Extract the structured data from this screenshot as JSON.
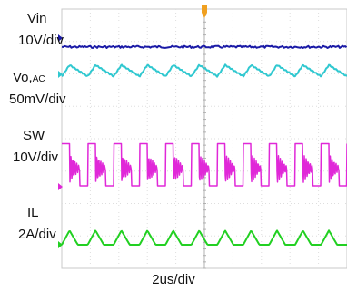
{
  "channels": [
    {
      "name": "Vin",
      "scale": "10V/div",
      "color": "#1a1aa6"
    },
    {
      "name_main": "Vo,",
      "name_sub": "AC",
      "scale": "50mV/div",
      "color": "#30c8d0"
    },
    {
      "name": "SW",
      "scale": "10V/div",
      "color": "#e028d8"
    },
    {
      "name": "IL",
      "scale": "2A/div",
      "color": "#22d022"
    }
  ],
  "timebase": "2us/div",
  "trigger_color": "#f0a020",
  "chart_data": {
    "type": "line",
    "x_divisions": 10,
    "y_divisions": 8,
    "grid": true,
    "series": [
      {
        "name": "Vin",
        "shape": "flat-dc",
        "level_div": 3.3
      },
      {
        "name": "Vo,AC",
        "shape": "sawtooth-ripple",
        "cycles_on_screen": 11,
        "peak_to_peak_div": 0.35
      },
      {
        "name": "SW",
        "shape": "pulse-with-ringing",
        "cycles_on_screen": 11,
        "amplitude_div": 1.0
      },
      {
        "name": "IL",
        "shape": "triangle-discontinuous",
        "cycles_on_screen": 11,
        "amplitude_div": 0.55
      }
    ]
  }
}
